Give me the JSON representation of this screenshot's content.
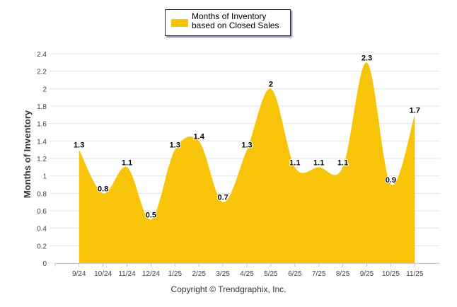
{
  "chart_data": {
    "type": "area",
    "title": "",
    "legend": [
      "Months of Inventory based on Closed Sales"
    ],
    "legend_placement": "top-center",
    "xlabel": "",
    "ylabel": "Months of Inventory",
    "categories": [
      "9/24",
      "10/24",
      "11/24",
      "12/24",
      "1/25",
      "2/25",
      "3/25",
      "4/25",
      "5/25",
      "6/25",
      "7/25",
      "8/25",
      "9/25",
      "10/25",
      "11/25"
    ],
    "series": [
      {
        "name": "Months of Inventory based on Closed Sales",
        "values": [
          1.3,
          0.8,
          1.1,
          0.5,
          1.3,
          1.4,
          0.7,
          1.3,
          2,
          1.1,
          1.1,
          1.1,
          2.3,
          0.9,
          1.7
        ],
        "labels": [
          "1.3",
          "0.8",
          "1.1",
          "0.5",
          "1.3",
          "1.4",
          "0.7",
          "1.3",
          "2",
          "1.1",
          "1.1",
          "1.1",
          "2.3",
          "0.9",
          "1.7"
        ]
      }
    ],
    "ylim": [
      0,
      2.4
    ],
    "yticks": [
      "0",
      "0.2",
      "0.4",
      "0.6",
      "0.8",
      "1",
      "1.2",
      "1.4",
      "1.6",
      "1.8",
      "2",
      "2.2",
      "2.4"
    ],
    "grid": true,
    "color": "#f7c40a"
  },
  "footer": {
    "copyright": "Copyright © Trendgraphix, Inc."
  }
}
